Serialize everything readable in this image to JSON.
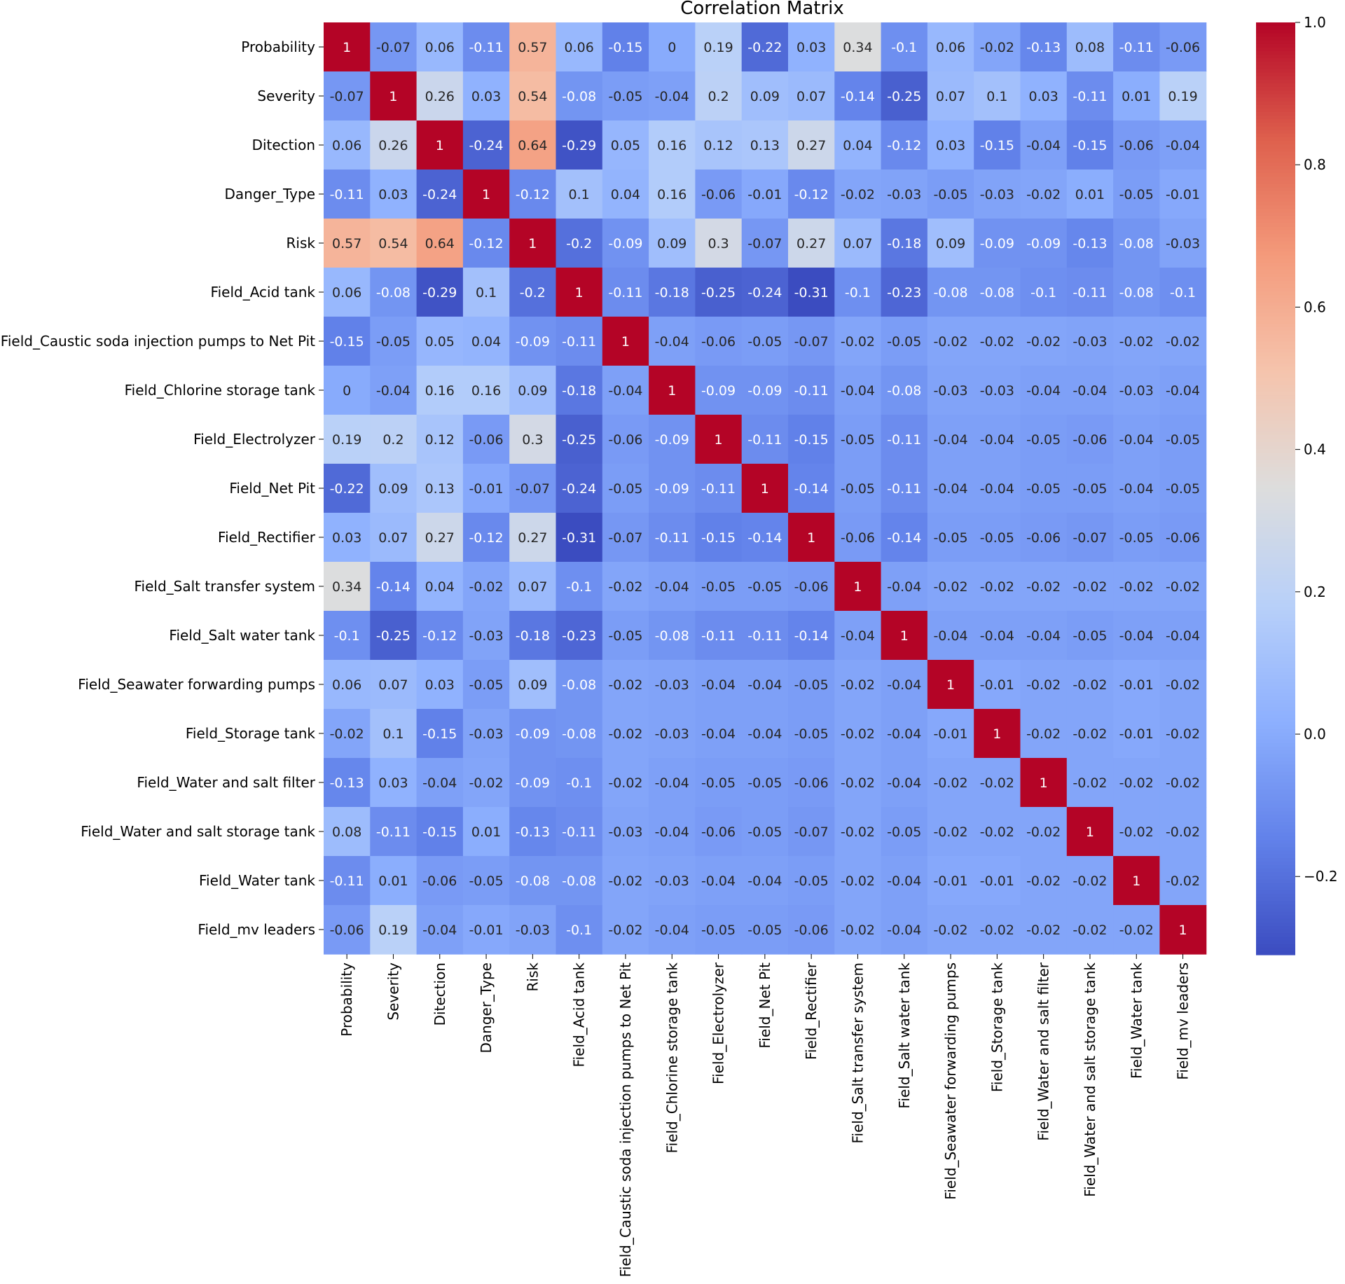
{
  "chart_data": {
    "type": "heatmap",
    "title": "Correlation Matrix",
    "xlabel": "",
    "ylabel": "",
    "labels": [
      "Probability",
      "Severity",
      "Ditection",
      "Danger_Type",
      "Risk",
      "Field_Acid tank",
      "Field_Caustic soda injection pumps to Net Pit",
      "Field_Chlorine storage tank",
      "Field_Electrolyzer",
      "Field_Net Pit",
      "Field_Rectifier",
      "Field_Salt transfer system",
      "Field_Salt water tank",
      "Field_Seawater forwarding pumps",
      "Field_Storage tank",
      "Field_Water and salt filter",
      "Field_Water and salt storage tank",
      "Field_Water tank",
      "Field_mv leaders"
    ],
    "matrix": [
      [
        1,
        -0.07,
        0.06,
        -0.11,
        0.57,
        0.06,
        -0.15,
        0,
        0.19,
        -0.22,
        0.03,
        0.34,
        -0.1,
        0.06,
        -0.02,
        -0.13,
        0.08,
        -0.11,
        -0.06
      ],
      [
        -0.07,
        1,
        0.26,
        0.03,
        0.54,
        -0.08,
        -0.05,
        -0.04,
        0.2,
        0.09,
        0.07,
        -0.14,
        -0.25,
        0.07,
        0.1,
        0.03,
        -0.11,
        0.01,
        0.19
      ],
      [
        0.06,
        0.26,
        1,
        -0.24,
        0.64,
        -0.29,
        0.05,
        0.16,
        0.12,
        0.13,
        0.27,
        0.04,
        -0.12,
        0.03,
        -0.15,
        -0.04,
        -0.15,
        -0.06,
        -0.04
      ],
      [
        -0.11,
        0.03,
        -0.24,
        1,
        -0.12,
        0.1,
        0.04,
        0.16,
        -0.06,
        -0.01,
        -0.12,
        -0.02,
        -0.03,
        -0.05,
        -0.03,
        -0.02,
        0.01,
        -0.05,
        -0.01
      ],
      [
        0.57,
        0.54,
        0.64,
        -0.12,
        1,
        -0.2,
        -0.09,
        0.09,
        0.3,
        -0.07,
        0.27,
        0.07,
        -0.18,
        0.09,
        -0.09,
        -0.09,
        -0.13,
        -0.08,
        -0.03
      ],
      [
        0.06,
        -0.08,
        -0.29,
        0.1,
        -0.2,
        1,
        -0.11,
        -0.18,
        -0.25,
        -0.24,
        -0.31,
        -0.1,
        -0.23,
        -0.08,
        -0.08,
        -0.1,
        -0.11,
        -0.08,
        -0.1
      ],
      [
        -0.15,
        -0.05,
        0.05,
        0.04,
        -0.09,
        -0.11,
        1,
        -0.04,
        -0.06,
        -0.05,
        -0.07,
        -0.02,
        -0.05,
        -0.02,
        -0.02,
        -0.02,
        -0.03,
        -0.02,
        -0.02
      ],
      [
        0,
        -0.04,
        0.16,
        0.16,
        0.09,
        -0.18,
        -0.04,
        1,
        -0.09,
        -0.09,
        -0.11,
        -0.04,
        -0.08,
        -0.03,
        -0.03,
        -0.04,
        -0.04,
        -0.03,
        -0.04
      ],
      [
        0.19,
        0.2,
        0.12,
        -0.06,
        0.3,
        -0.25,
        -0.06,
        -0.09,
        1,
        -0.11,
        -0.15,
        -0.05,
        -0.11,
        -0.04,
        -0.04,
        -0.05,
        -0.06,
        -0.04,
        -0.05
      ],
      [
        -0.22,
        0.09,
        0.13,
        -0.01,
        -0.07,
        -0.24,
        -0.05,
        -0.09,
        -0.11,
        1,
        -0.14,
        -0.05,
        -0.11,
        -0.04,
        -0.04,
        -0.05,
        -0.05,
        -0.04,
        -0.05
      ],
      [
        0.03,
        0.07,
        0.27,
        -0.12,
        0.27,
        -0.31,
        -0.07,
        -0.11,
        -0.15,
        -0.14,
        1,
        -0.06,
        -0.14,
        -0.05,
        -0.05,
        -0.06,
        -0.07,
        -0.05,
        -0.06
      ],
      [
        0.34,
        -0.14,
        0.04,
        -0.02,
        0.07,
        -0.1,
        -0.02,
        -0.04,
        -0.05,
        -0.05,
        -0.06,
        1,
        -0.04,
        -0.02,
        -0.02,
        -0.02,
        -0.02,
        -0.02,
        -0.02
      ],
      [
        -0.1,
        -0.25,
        -0.12,
        -0.03,
        -0.18,
        -0.23,
        -0.05,
        -0.08,
        -0.11,
        -0.11,
        -0.14,
        -0.04,
        1,
        -0.04,
        -0.04,
        -0.04,
        -0.05,
        -0.04,
        -0.04
      ],
      [
        0.06,
        0.07,
        0.03,
        -0.05,
        0.09,
        -0.08,
        -0.02,
        -0.03,
        -0.04,
        -0.04,
        -0.05,
        -0.02,
        -0.04,
        1,
        -0.01,
        -0.02,
        -0.02,
        -0.01,
        -0.02
      ],
      [
        -0.02,
        0.1,
        -0.15,
        -0.03,
        -0.09,
        -0.08,
        -0.02,
        -0.03,
        -0.04,
        -0.04,
        -0.05,
        -0.02,
        -0.04,
        -0.01,
        1,
        -0.02,
        -0.02,
        -0.01,
        -0.02
      ],
      [
        -0.13,
        0.03,
        -0.04,
        -0.02,
        -0.09,
        -0.1,
        -0.02,
        -0.04,
        -0.05,
        -0.05,
        -0.06,
        -0.02,
        -0.04,
        -0.02,
        -0.02,
        1,
        -0.02,
        -0.02,
        -0.02
      ],
      [
        0.08,
        -0.11,
        -0.15,
        0.01,
        -0.13,
        -0.11,
        -0.03,
        -0.04,
        -0.06,
        -0.05,
        -0.07,
        -0.02,
        -0.05,
        -0.02,
        -0.02,
        -0.02,
        1,
        -0.02,
        -0.02
      ],
      [
        -0.11,
        0.01,
        -0.06,
        -0.05,
        -0.08,
        -0.08,
        -0.02,
        -0.03,
        -0.04,
        -0.04,
        -0.05,
        -0.02,
        -0.04,
        -0.01,
        -0.01,
        -0.02,
        -0.02,
        1,
        -0.02
      ],
      [
        -0.06,
        0.19,
        -0.04,
        -0.01,
        -0.03,
        -0.1,
        -0.02,
        -0.04,
        -0.05,
        -0.05,
        -0.06,
        -0.02,
        -0.04,
        -0.02,
        -0.02,
        -0.02,
        -0.02,
        -0.02,
        1
      ]
    ],
    "vmin": -0.31,
    "vmax": 1.0,
    "colormap": "coolwarm",
    "colorbar": {
      "ticks": [
        -0.2,
        0.0,
        0.2,
        0.4,
        0.6,
        0.8,
        1.0
      ],
      "tick_labels": [
        "−0.2",
        "0.0",
        "0.2",
        "0.4",
        "0.6",
        "0.8",
        "1.0"
      ]
    },
    "annotations": true
  }
}
